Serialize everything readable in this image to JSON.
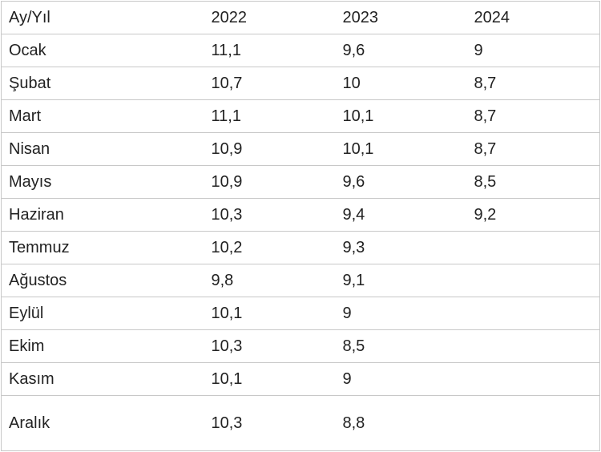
{
  "table": {
    "headers": [
      "Ay/Yıl",
      "2022",
      "2023",
      "2024"
    ],
    "rows": [
      [
        "Ocak",
        "11,1",
        "9,6",
        "9"
      ],
      [
        "Şubat",
        "10,7",
        "10",
        "8,7"
      ],
      [
        "Mart",
        "11,1",
        "10,1",
        "8,7"
      ],
      [
        "Nisan",
        "10,9",
        "10,1",
        "8,7"
      ],
      [
        "Mayıs",
        "10,9",
        "9,6",
        "8,5"
      ],
      [
        "Haziran",
        "10,3",
        "9,4",
        "9,2"
      ],
      [
        "Temmuz",
        "10,2",
        "9,3",
        ""
      ],
      [
        "Ağustos",
        "9,8",
        "9,1",
        ""
      ],
      [
        "Eylül",
        "10,1",
        "9",
        ""
      ],
      [
        "Ekim",
        "10,3",
        "8,5",
        ""
      ],
      [
        "Kasım",
        "10,1",
        "9",
        ""
      ],
      [
        "Aralık",
        "10,3",
        "8,8",
        ""
      ]
    ]
  }
}
